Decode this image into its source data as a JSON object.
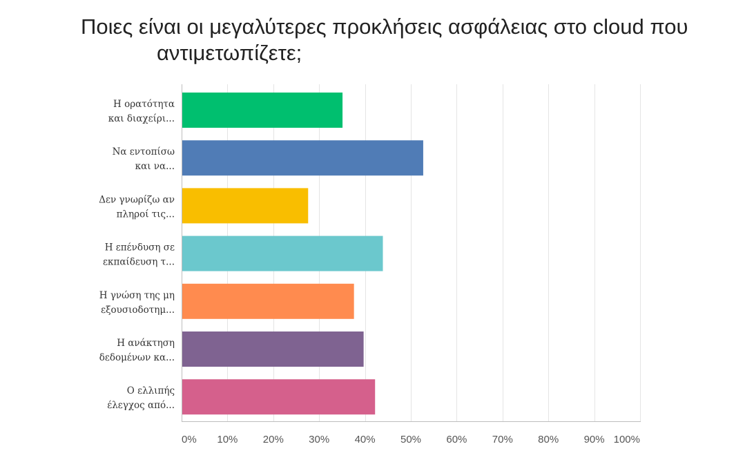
{
  "chart_data": {
    "type": "bar",
    "orientation": "horizontal",
    "title_lines": [
      "Ποιες είναι οι μεγαλύτερες προκλήσεις ασφάλειας στο cloud που",
      "αντιμετωπίζετε;"
    ],
    "categories": [
      [
        "Η ορατότητα",
        "και διαχείρι..."
      ],
      [
        "Να εντοπίσω",
        "και να..."
      ],
      [
        "Δεν γνωρίζω αν",
        "πληροί τις..."
      ],
      [
        "Η επένδυση σε",
        "εκπαίδευση τ..."
      ],
      [
        "Η γνώση της μη",
        "εξουσιοδοτημ..."
      ],
      [
        "Η ανάκτηση",
        "δεδομένων κα..."
      ],
      [
        "Ο ελλιπής",
        "έλεγχος από..."
      ]
    ],
    "values": [
      35.1,
      52.7,
      27.6,
      43.9,
      37.6,
      39.7,
      42.2
    ],
    "colors": [
      "#00bf6f",
      "#507cb6",
      "#f9be00",
      "#6bc8cd",
      "#ff8b4f",
      "#7f6391",
      "#d5608c"
    ],
    "xlim": [
      0,
      100
    ],
    "x_unit": "%",
    "x_ticks": [
      0,
      10,
      20,
      30,
      40,
      50,
      60,
      70,
      80,
      90,
      100
    ],
    "grid": true,
    "legend": "none"
  }
}
